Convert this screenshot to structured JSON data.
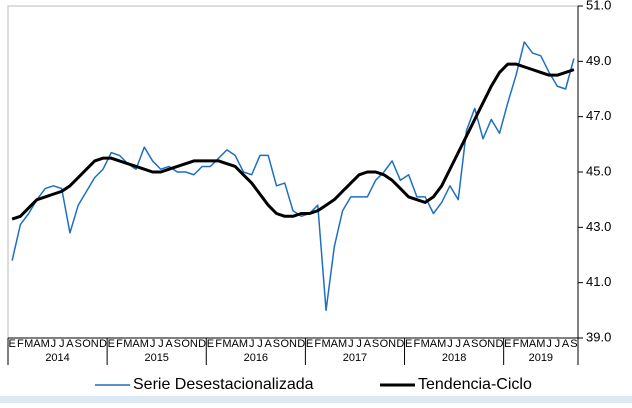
{
  "chart_data": {
    "type": "line",
    "categories": [
      "E",
      "F",
      "M",
      "A",
      "M",
      "J",
      "J",
      "A",
      "S",
      "O",
      "N",
      "D",
      "E",
      "F",
      "M",
      "A",
      "M",
      "J",
      "J",
      "A",
      "S",
      "O",
      "N",
      "D",
      "E",
      "F",
      "M",
      "A",
      "M",
      "J",
      "J",
      "A",
      "S",
      "O",
      "N",
      "D",
      "E",
      "F",
      "M",
      "A",
      "M",
      "J",
      "J",
      "A",
      "S",
      "O",
      "N",
      "D",
      "E",
      "F",
      "M",
      "A",
      "M",
      "J",
      "J",
      "A",
      "S",
      "O",
      "N",
      "D",
      "E",
      "F",
      "M",
      "A",
      "M",
      "J",
      "J",
      "A",
      "S"
    ],
    "year_labels": [
      "2014",
      "2015",
      "2016",
      "2017",
      "2018",
      "2019"
    ],
    "series": [
      {
        "name": "Serie Desestacionalizada",
        "color": "#1f6fc1",
        "width": 1.5,
        "values": [
          41.8,
          43.1,
          43.5,
          44.0,
          44.4,
          44.5,
          44.4,
          42.8,
          43.8,
          44.3,
          44.8,
          45.1,
          45.7,
          45.6,
          45.3,
          45.1,
          45.9,
          45.4,
          45.1,
          45.2,
          45.0,
          45.0,
          44.9,
          45.2,
          45.2,
          45.5,
          45.8,
          45.6,
          45.0,
          44.9,
          45.6,
          45.6,
          44.5,
          44.6,
          43.6,
          43.4,
          43.5,
          43.8,
          40.0,
          42.3,
          43.6,
          44.1,
          44.1,
          44.1,
          44.7,
          45.0,
          45.4,
          44.7,
          44.9,
          44.1,
          44.1,
          43.5,
          43.9,
          44.5,
          44.0,
          46.5,
          47.3,
          46.2,
          46.9,
          46.4,
          47.5,
          48.5,
          49.7,
          49.3,
          49.2,
          48.6,
          48.1,
          48.0,
          49.1
        ]
      },
      {
        "name": "Tendencia-Ciclo",
        "color": "#000000",
        "width": 3,
        "values": [
          43.3,
          43.4,
          43.7,
          44.0,
          44.1,
          44.2,
          44.3,
          44.5,
          44.8,
          45.1,
          45.4,
          45.5,
          45.5,
          45.4,
          45.3,
          45.2,
          45.1,
          45.0,
          45.0,
          45.1,
          45.2,
          45.3,
          45.4,
          45.4,
          45.4,
          45.4,
          45.3,
          45.2,
          44.9,
          44.6,
          44.2,
          43.8,
          43.5,
          43.4,
          43.4,
          43.5,
          43.5,
          43.6,
          43.8,
          44.0,
          44.3,
          44.6,
          44.9,
          45.0,
          45.0,
          44.9,
          44.7,
          44.4,
          44.1,
          44.0,
          43.9,
          44.1,
          44.5,
          45.1,
          45.7,
          46.3,
          46.9,
          47.5,
          48.1,
          48.6,
          48.9,
          48.9,
          48.8,
          48.7,
          48.6,
          48.5,
          48.5,
          48.6,
          48.7
        ]
      }
    ],
    "ylim": [
      39,
      51
    ],
    "yticks": [
      {
        "value": 39,
        "label": "39.0"
      },
      {
        "value": 41,
        "label": "41.0"
      },
      {
        "value": 43,
        "label": "43.0"
      },
      {
        "value": 45,
        "label": "45.0"
      },
      {
        "value": 47,
        "label": "47.0"
      },
      {
        "value": 49,
        "label": "49.0"
      },
      {
        "value": 51,
        "label": "51.0"
      }
    ],
    "legend": "bottom"
  }
}
